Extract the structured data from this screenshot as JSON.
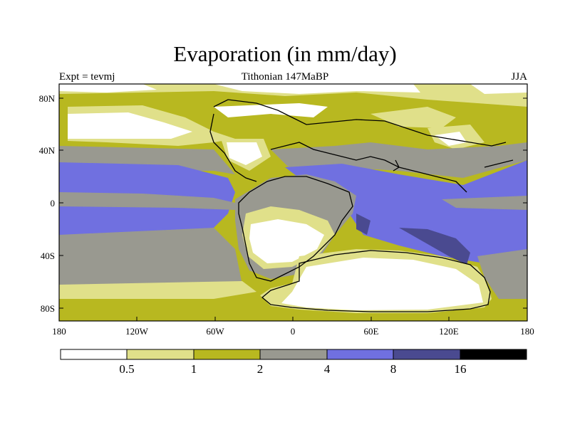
{
  "title": "Evaporation (in mm/day)",
  "left_label": "Expt = tevmj",
  "center_label": "Tithonian 147MaBP",
  "right_label": "JJA",
  "x_ticks": [
    "180",
    "120W",
    "60W",
    "0",
    "60E",
    "120E",
    "180"
  ],
  "y_ticks": [
    "80N",
    "40N",
    "0",
    "40S",
    "80S"
  ],
  "colorbar": {
    "labels": [
      "0.5",
      "1",
      "2",
      "4",
      "8",
      "16"
    ],
    "colors": [
      "#ffffff",
      "#e0e08a",
      "#b8b820",
      "#999990",
      "#7070e0",
      "#4a4a90",
      "#000000"
    ]
  },
  "colors": {
    "white": "#ffffff",
    "light_yellow": "#e0e08a",
    "olive": "#b8b820",
    "gray": "#999990",
    "blue": "#7070e0",
    "dark_blue": "#4a4a90",
    "coast": "#000000"
  }
}
